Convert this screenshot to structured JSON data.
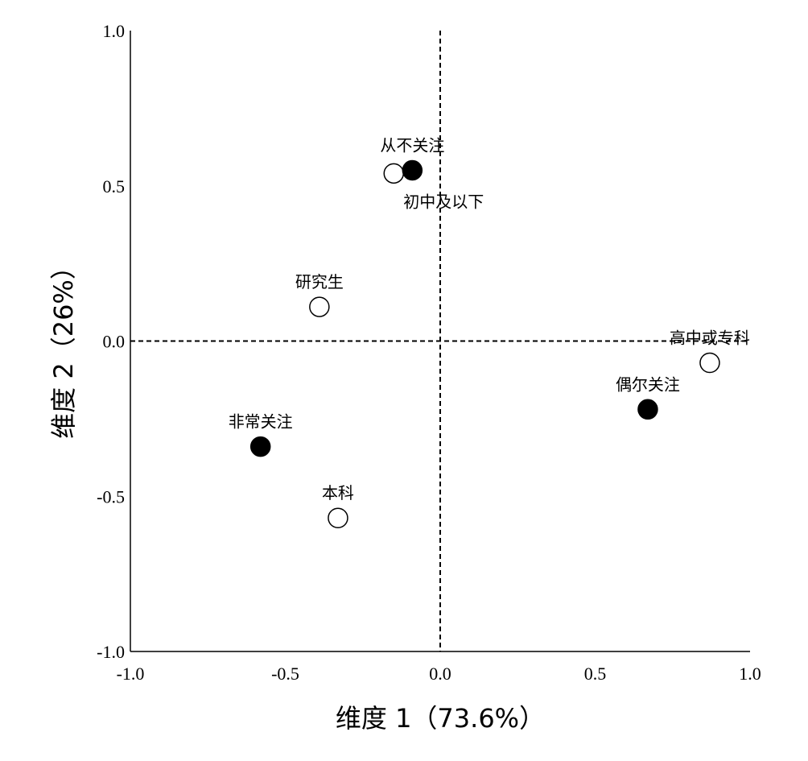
{
  "chart_data": {
    "type": "scatter",
    "xlabel": "维度 1（73.6%）",
    "ylabel": "维度 2（26%）",
    "xlim": [
      -1.0,
      1.0
    ],
    "ylim": [
      -1.0,
      1.0
    ],
    "x_ticks": [
      "-1.0",
      "-0.5",
      "0.0",
      "0.5",
      "1.0"
    ],
    "y_ticks": [
      "1.0",
      "0.5",
      "0.0",
      "-0.5",
      "-1.0"
    ],
    "reference_lines": {
      "x": 0.0,
      "y": 0.0,
      "style": "dashed"
    },
    "grid": false,
    "points": [
      {
        "label": "从不关注",
        "x": -0.09,
        "y": 0.55,
        "fill": "#000000",
        "label_position": "above"
      },
      {
        "label": "初中及以下",
        "x": -0.15,
        "y": 0.54,
        "fill": "#ffffff",
        "label_position": "below-right"
      },
      {
        "label": "研究生",
        "x": -0.39,
        "y": 0.11,
        "fill": "#ffffff",
        "label_position": "above"
      },
      {
        "label": "高中或专科",
        "x": 0.87,
        "y": -0.07,
        "fill": "#ffffff",
        "label_position": "above"
      },
      {
        "label": "偶尔关注",
        "x": 0.67,
        "y": -0.22,
        "fill": "#000000",
        "label_position": "above"
      },
      {
        "label": "非常关注",
        "x": -0.58,
        "y": -0.34,
        "fill": "#000000",
        "label_position": "above"
      },
      {
        "label": "本科",
        "x": -0.33,
        "y": -0.57,
        "fill": "#ffffff",
        "label_position": "above"
      }
    ]
  }
}
